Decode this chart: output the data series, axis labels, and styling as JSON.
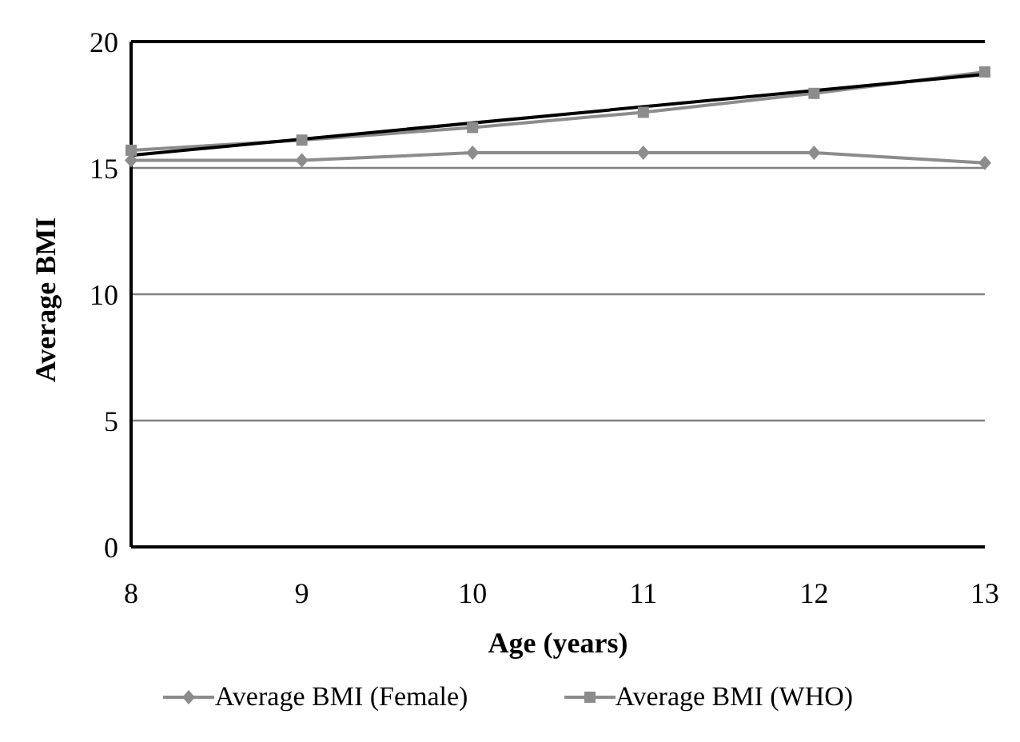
{
  "chart_data": {
    "type": "line",
    "xlabel": "Age (years)",
    "ylabel": "Average BMI",
    "categories": [
      "8",
      "9",
      "10",
      "11",
      "12",
      "13"
    ],
    "series": [
      {
        "name": "Average BMI (Female)",
        "color": "#8c8c8c",
        "marker": "diamond",
        "values": [
          15.3,
          15.3,
          15.6,
          15.6,
          15.6,
          15.2
        ]
      },
      {
        "name": "Average BMI (WHO)",
        "color": "#8c8c8c",
        "marker": "square",
        "values": [
          15.7,
          16.1,
          16.6,
          17.2,
          17.95,
          18.8
        ]
      },
      {
        "type": "line",
        "color": "#000000",
        "marker": "none",
        "x": [
          "8",
          "13"
        ],
        "values": [
          15.5,
          18.7
        ]
      }
    ],
    "ylim": [
      0,
      20
    ],
    "yticks": [
      0,
      5,
      10,
      15,
      20
    ],
    "grid": "y",
    "legend": "bottom"
  }
}
